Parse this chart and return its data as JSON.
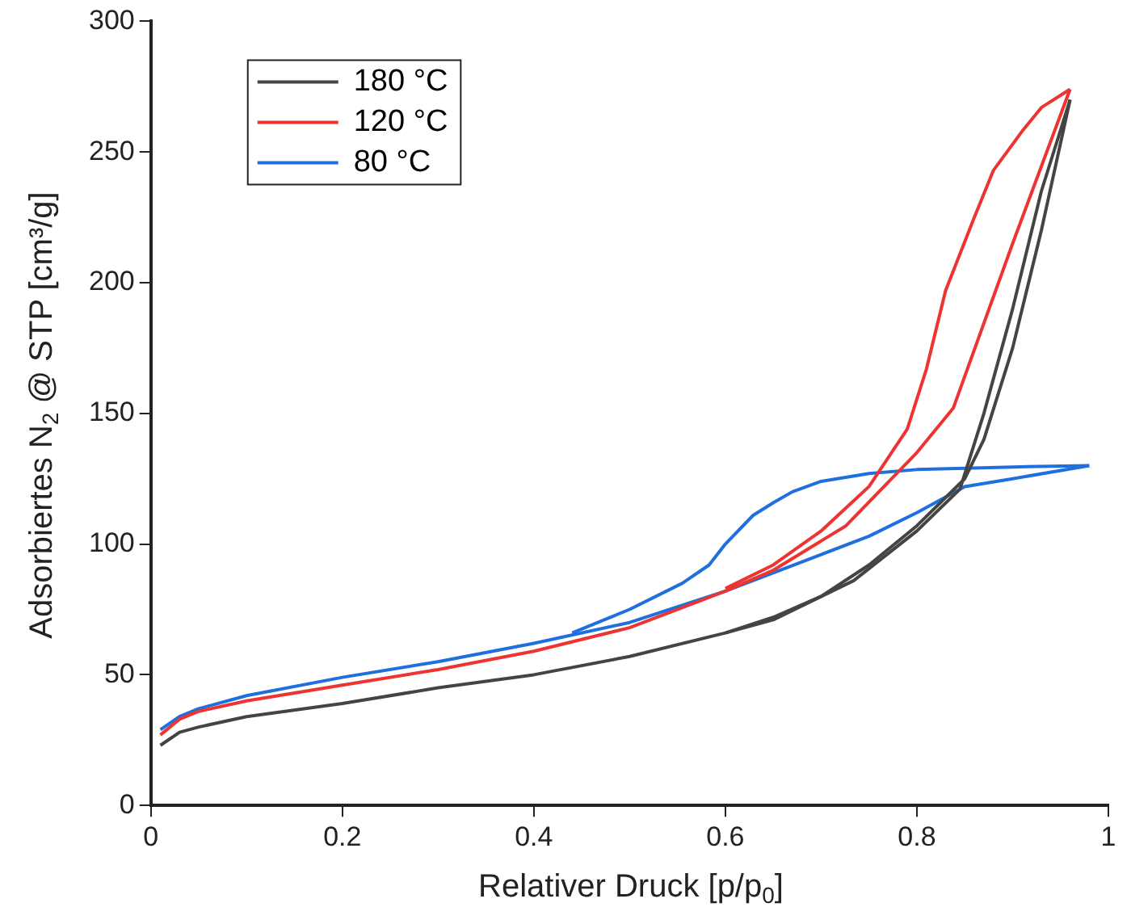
{
  "chart_data": {
    "type": "line",
    "xlabel": "Relativer Druck [p/p$_{0}$]",
    "ylabel": "Adsorbiertes N$_{2}$ @ STP [cm³/g]",
    "xlim": [
      0,
      1
    ],
    "xticks": [
      0,
      0.2,
      0.4,
      0.6,
      0.8,
      1
    ],
    "ylim": [
      0,
      300
    ],
    "yticks": [
      0,
      50,
      100,
      150,
      200,
      250,
      300
    ],
    "grid": false,
    "legend": "top left",
    "marker": "none",
    "line_style": "solid",
    "series": [
      {
        "name": "180 °C",
        "color": "#444444",
        "x": [
          0.01,
          0.03,
          0.05,
          0.1,
          0.2,
          0.3,
          0.4,
          0.5,
          0.6,
          0.65,
          0.734,
          0.8,
          0.845,
          0.87,
          0.9,
          0.93,
          0.96
        ],
        "values": [
          23,
          28,
          30,
          34,
          39,
          45,
          50,
          57,
          66,
          71,
          86,
          105,
          121,
          150,
          190,
          235,
          270
        ]
      },
      {
        "color": "#444444",
        "x": [
          0.6,
          0.65,
          0.7,
          0.75,
          0.8,
          0.85,
          0.87,
          0.9,
          0.93,
          0.96
        ],
        "values": [
          66,
          72,
          80,
          92,
          107,
          125,
          140,
          175,
          220,
          270
        ]
      },
      {
        "name": "120 °C",
        "color": "#ee3333",
        "x": [
          0.01,
          0.03,
          0.05,
          0.1,
          0.2,
          0.3,
          0.4,
          0.5,
          0.6,
          0.65,
          0.726,
          0.8,
          0.838,
          0.9,
          0.96
        ],
        "values": [
          27,
          33,
          36,
          40,
          46,
          52,
          59,
          68,
          82,
          90,
          107,
          135,
          152,
          215,
          274
        ]
      },
      {
        "color": "#ee3333",
        "x": [
          0.6,
          0.65,
          0.7,
          0.75,
          0.79,
          0.81,
          0.83,
          0.86,
          0.88,
          0.91,
          0.93,
          0.96
        ],
        "values": [
          83,
          92,
          105,
          122,
          144,
          167,
          197,
          225,
          243,
          258,
          267,
          274
        ]
      },
      {
        "name": "80 °C",
        "color": "#1f6fdf",
        "x": [
          0.01,
          0.03,
          0.05,
          0.1,
          0.2,
          0.3,
          0.4,
          0.5,
          0.6,
          0.7,
          0.75,
          0.8,
          0.85,
          0.9,
          0.98
        ],
        "values": [
          29,
          34,
          37,
          42,
          49,
          55,
          62,
          70,
          82,
          96,
          103,
          112,
          122,
          125,
          130
        ]
      },
      {
        "color": "#1f6fdf",
        "x": [
          0.44,
          0.5,
          0.555,
          0.583,
          0.6,
          0.629,
          0.651,
          0.67,
          0.7,
          0.75,
          0.8,
          0.9,
          0.98
        ],
        "values": [
          66,
          75,
          85,
          92,
          100,
          111,
          116,
          120,
          124,
          127,
          128.5,
          129.5,
          130
        ]
      }
    ]
  }
}
